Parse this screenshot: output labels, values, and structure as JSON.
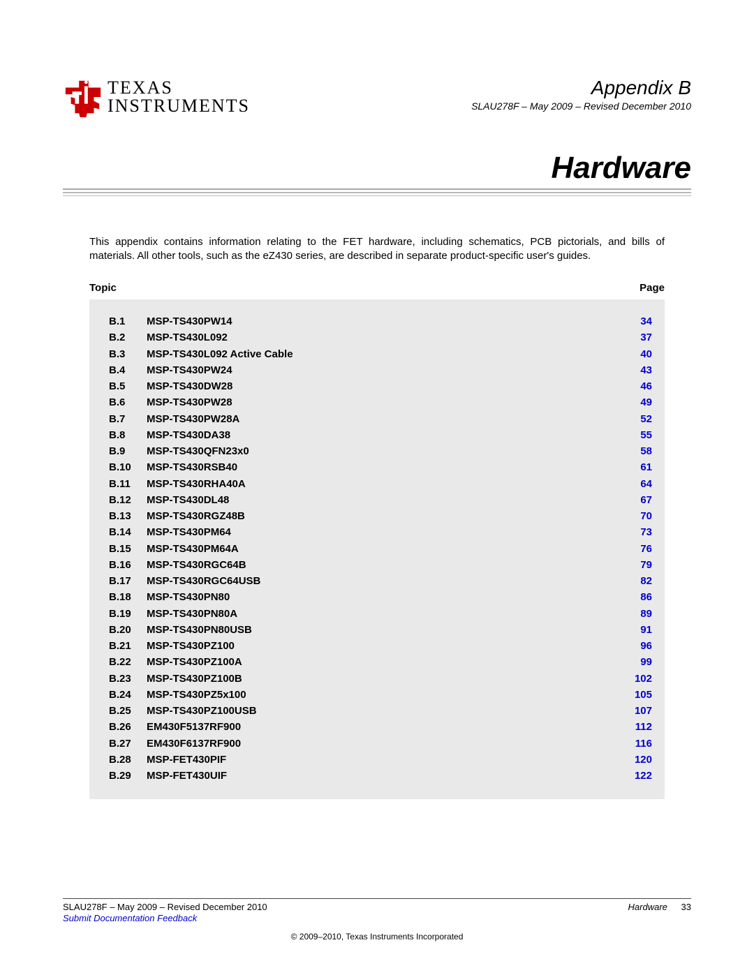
{
  "brand": {
    "name_top": "TEXAS",
    "name_bottom": "INSTRUMENTS",
    "logo_color": "#cc0000"
  },
  "header": {
    "appendix": "Appendix B",
    "doc_id": "SLAU278F – May 2009 – Revised December 2010",
    "title": "Hardware",
    "rule_color": "#a9a9a9"
  },
  "intro": "This appendix contains information relating to the FET hardware, including schematics, PCB pictorials, and bills of materials. All other tools, such as the eZ430 series, are described in separate product-specific user's guides.",
  "toc_header": {
    "left": "Topic",
    "right": "Page"
  },
  "toc": {
    "link_color": "#0000cc",
    "bg_color": "#e9e9e9",
    "items": [
      {
        "num": "B.1",
        "title": "MSP-TS430PW14",
        "page": "34"
      },
      {
        "num": "B.2",
        "title": "MSP-TS430L092",
        "page": "37"
      },
      {
        "num": "B.3",
        "title": "MSP-TS430L092 Active Cable",
        "page": "40"
      },
      {
        "num": "B.4",
        "title": "MSP-TS430PW24",
        "page": "43"
      },
      {
        "num": "B.5",
        "title": "MSP-TS430DW28",
        "page": "46"
      },
      {
        "num": "B.6",
        "title": "MSP-TS430PW28",
        "page": "49"
      },
      {
        "num": "B.7",
        "title": "MSP-TS430PW28A",
        "page": "52"
      },
      {
        "num": "B.8",
        "title": "MSP-TS430DA38",
        "page": "55"
      },
      {
        "num": "B.9",
        "title": "MSP-TS430QFN23x0",
        "page": "58"
      },
      {
        "num": "B.10",
        "title": "MSP-TS430RSB40",
        "page": "61"
      },
      {
        "num": "B.11",
        "title": "MSP-TS430RHA40A",
        "page": "64"
      },
      {
        "num": "B.12",
        "title": "MSP-TS430DL48",
        "page": "67"
      },
      {
        "num": "B.13",
        "title": "MSP-TS430RGZ48B",
        "page": "70"
      },
      {
        "num": "B.14",
        "title": "MSP-TS430PM64",
        "page": "73"
      },
      {
        "num": "B.15",
        "title": "MSP-TS430PM64A",
        "page": "76"
      },
      {
        "num": "B.16",
        "title": "MSP-TS430RGC64B",
        "page": "79"
      },
      {
        "num": "B.17",
        "title": "MSP-TS430RGC64USB",
        "page": "82"
      },
      {
        "num": "B.18",
        "title": "MSP-TS430PN80",
        "page": "86"
      },
      {
        "num": "B.19",
        "title": "MSP-TS430PN80A",
        "page": "89"
      },
      {
        "num": "B.20",
        "title": "MSP-TS430PN80USB",
        "page": "91"
      },
      {
        "num": "B.21",
        "title": "MSP-TS430PZ100",
        "page": "96"
      },
      {
        "num": "B.22",
        "title": "MSP-TS430PZ100A",
        "page": "99"
      },
      {
        "num": "B.23",
        "title": "MSP-TS430PZ100B",
        "page": "102"
      },
      {
        "num": "B.24",
        "title": "MSP-TS430PZ5x100",
        "page": "105"
      },
      {
        "num": "B.25",
        "title": "MSP-TS430PZ100USB",
        "page": "107"
      },
      {
        "num": "B.26",
        "title": "EM430F5137RF900",
        "page": "112"
      },
      {
        "num": "B.27",
        "title": "EM430F6137RF900",
        "page": "116"
      },
      {
        "num": "B.28",
        "title": "MSP-FET430PIF",
        "page": "120"
      },
      {
        "num": "B.29",
        "title": "MSP-FET430UIF",
        "page": "122"
      }
    ]
  },
  "footer": {
    "left": "SLAU278F – May 2009 – Revised December 2010",
    "right_label": "Hardware",
    "page_number": "33",
    "feedback": "Submit Documentation Feedback",
    "copyright": "© 2009–2010, Texas Instruments Incorporated"
  }
}
